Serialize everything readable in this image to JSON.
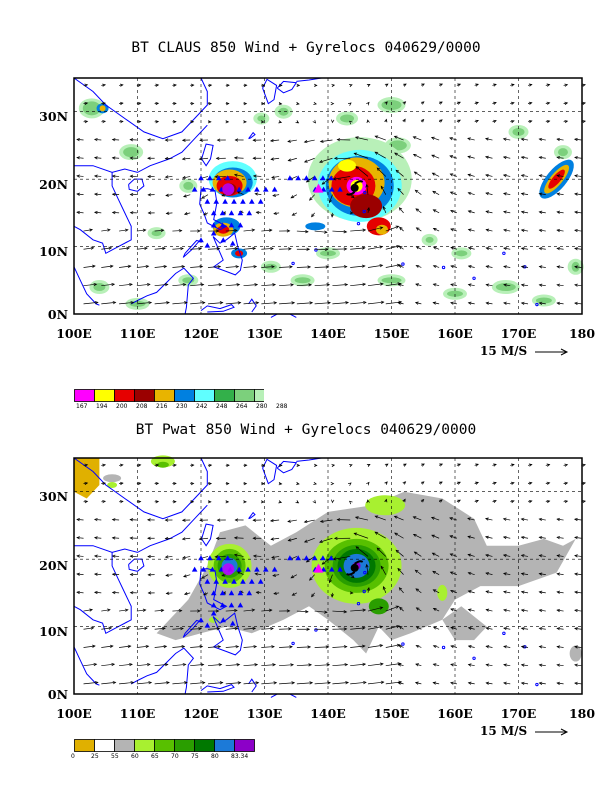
{
  "panel1": {
    "title": "BT CLAUS 850 Wind + Gyrelocs 040629/0000",
    "xticks": [
      "100E",
      "110E",
      "120E",
      "130E",
      "140E",
      "150E",
      "160E",
      "170E",
      "180"
    ],
    "yticks": [
      "30N",
      "20N",
      "10N",
      "0N"
    ],
    "ref_vector": "15 M/S",
    "colorbar_labels": [
      "167",
      "194",
      "200",
      "208",
      "216",
      "230",
      "242",
      "248",
      "264",
      "280",
      "288"
    ],
    "colorbar_colors": [
      "#ff00ff",
      "#ffff00",
      "#e60000",
      "#9b0000",
      "#e8b400",
      "#0080e0",
      "#60ffff",
      "#33b04a",
      "#7cd07c",
      "#b8f0b8",
      "#d8d8d8"
    ]
  },
  "panel2": {
    "title": "BT Pwat 850 Wind + Gyrelocs 040629/0000",
    "xticks": [
      "100E",
      "110E",
      "120E",
      "130E",
      "140E",
      "150E",
      "160E",
      "170E",
      "180"
    ],
    "yticks": [
      "30N",
      "20N",
      "10N",
      "0N"
    ],
    "ref_vector": "15 M/S",
    "colorbar_labels": [
      "0",
      "25",
      "55",
      "60",
      "65",
      "70",
      "75",
      "80",
      "83.34"
    ],
    "colorbar_colors": [
      "#e0b000",
      "#ffffff",
      "#b4b4b4",
      "#a8f030",
      "#58c000",
      "#2a9e00",
      "#007800",
      "#1c7ad8",
      "#8c00c8"
    ]
  },
  "chart_data": [
    {
      "type": "heatmap",
      "title": "BT CLAUS 850 Wind + Gyrelocs 040629/0000",
      "field": "CLAUS cloud brightness temperature",
      "x_range": [
        100,
        180
      ],
      "y_range": [
        0,
        35
      ],
      "gyre_locations": "triangles along ~18-20N from 120E to 140E",
      "storm_center": {
        "lon": 144,
        "lat": 19
      }
    },
    {
      "type": "heatmap",
      "title": "BT Pwat 850 Wind + Gyrelocs 040629/0000",
      "field": "precipitable water",
      "x_range": [
        100,
        180
      ],
      "y_range": [
        0,
        35
      ],
      "storm_center": {
        "lon": 144,
        "lat": 19
      }
    }
  ]
}
